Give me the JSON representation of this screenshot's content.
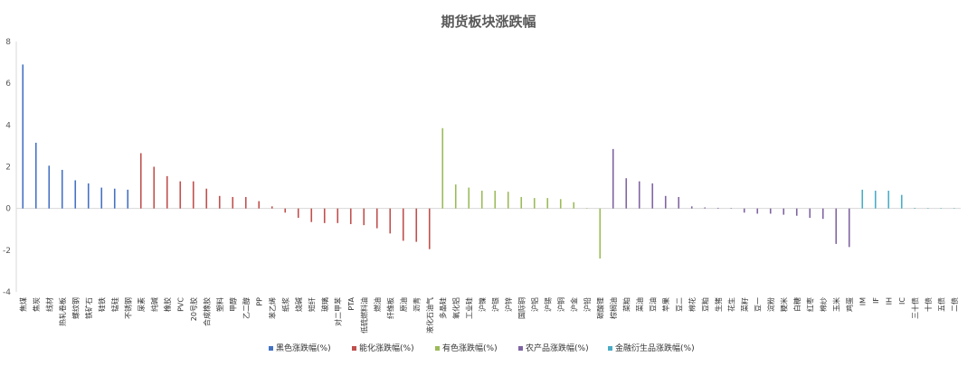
{
  "chart_data": {
    "type": "bar",
    "title": "期货板块涨跌幅",
    "xlabel": "",
    "ylabel": "",
    "ylim": [
      -4,
      8
    ],
    "yticks": [
      8,
      6,
      4,
      2,
      0,
      -2,
      -4
    ],
    "grid": false,
    "legend_position": "bottom",
    "series": [
      {
        "name": "黑色涨跌幅(%)",
        "color": "#4472C4",
        "categories": [
          "焦煤",
          "焦炭",
          "线材",
          "热轧卷板",
          "螺纹钢",
          "铁矿石",
          "硅铁",
          "锰硅",
          "不锈钢"
        ],
        "values": [
          6.9,
          3.15,
          2.05,
          1.85,
          1.35,
          1.2,
          1.0,
          0.95,
          0.9
        ]
      },
      {
        "name": "能化涨跌幅(%)",
        "color": "#C0504D",
        "categories": [
          "尿素",
          "纯碱",
          "橡胶",
          "PVC",
          "20号胶",
          "合成橡胶",
          "塑料",
          "甲醇",
          "乙二醇",
          "PP",
          "苯乙烯",
          "纸浆",
          "烧碱",
          "短纤",
          "玻璃",
          "对二甲苯",
          "PTA",
          "低硫燃料油",
          "燃油",
          "纤维板",
          "原油",
          "沥青",
          "液化石油气"
        ],
        "values": [
          2.65,
          2.0,
          1.55,
          1.3,
          1.3,
          0.95,
          0.6,
          0.55,
          0.55,
          0.35,
          0.1,
          -0.2,
          -0.45,
          -0.65,
          -0.7,
          -0.7,
          -0.75,
          -0.8,
          -0.95,
          -1.2,
          -1.55,
          -1.6,
          -1.95
        ]
      },
      {
        "name": "有色涨跌幅(%)",
        "color": "#9BBB59",
        "categories": [
          "多晶硅",
          "氧化铝",
          "工业硅",
          "沪镍",
          "沪银",
          "沪锌",
          "国际铜",
          "沪铝",
          "沪锡",
          "沪铜",
          "沪金",
          "沪铅",
          "碳酸锂"
        ],
        "values": [
          3.85,
          1.15,
          1.0,
          0.85,
          0.85,
          0.8,
          0.55,
          0.5,
          0.5,
          0.45,
          0.3,
          0.02,
          -2.4
        ]
      },
      {
        "name": "农产品涨跌幅(%)",
        "color": "#8064A2",
        "categories": [
          "棕榈油",
          "菜粕",
          "菜油",
          "豆油",
          "苹果",
          "豆二",
          "棉花",
          "豆粕",
          "生猪",
          "花生",
          "菜籽",
          "豆一",
          "淀粉",
          "粳米",
          "白糖",
          "红枣",
          "棉纱",
          "玉米",
          "鸡蛋"
        ],
        "values": [
          2.85,
          1.45,
          1.3,
          1.2,
          0.6,
          0.55,
          0.1,
          0.05,
          0.03,
          0.02,
          -0.2,
          -0.25,
          -0.25,
          -0.3,
          -0.35,
          -0.45,
          -0.5,
          -1.7,
          -1.85
        ]
      },
      {
        "name": "金融衍生品涨跌幅(%)",
        "color": "#4BACC6",
        "categories": [
          "IM",
          "IF",
          "IH",
          "IC",
          "三十债",
          "十债",
          "五债",
          "二债"
        ],
        "values": [
          0.9,
          0.85,
          0.85,
          0.65,
          0.03,
          0.02,
          0.02,
          0.01
        ]
      }
    ]
  }
}
